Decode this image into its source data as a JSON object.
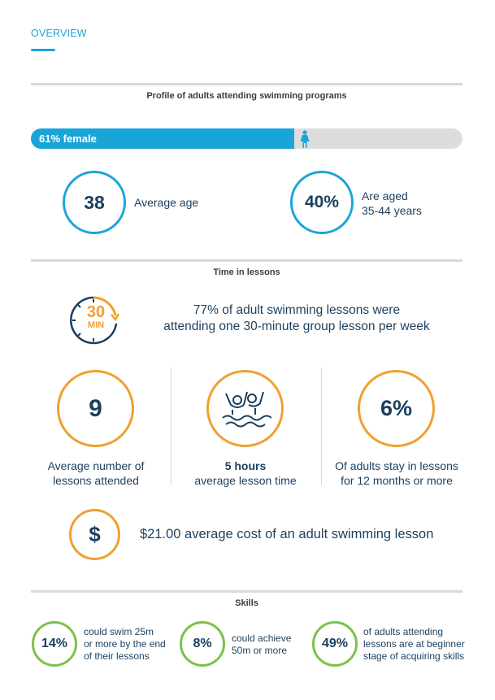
{
  "header": {
    "overview": "OVERVIEW"
  },
  "profile": {
    "title": "Profile of adults attending swimming programs",
    "female_label": "61% female",
    "female_fraction": 0.61,
    "avg_age_value": "38",
    "avg_age_label": "Average age",
    "aged_value": "40%",
    "aged_line1": "Are aged",
    "aged_line2": "35-44 years"
  },
  "time": {
    "title": "Time in lessons",
    "clock_number": "30",
    "clock_unit": "MIN",
    "lesson_text_line1": "77% of adult swimming lessons were",
    "lesson_text_line2": "attending one 30-minute group lesson per week",
    "stat1_value": "9",
    "stat1_line1": "Average number of",
    "stat1_line2": "lessons attended",
    "stat2_bold": "5 hours",
    "stat2_line2": "average lesson time",
    "stat3_value": "6%",
    "stat3_line1": "Of adults stay in lessons",
    "stat3_line2": "for 12 months or more",
    "cost_symbol": "$",
    "cost_text": "$21.00 average cost of an adult swimming lesson"
  },
  "skills": {
    "title": "Skills",
    "s1_value": "14%",
    "s1_line1": "could swim 25m",
    "s1_line2": "or more by the end",
    "s1_line3": "of their lessons",
    "s2_value": "8%",
    "s2_line1": "could achieve",
    "s2_line2": "50m or more",
    "s3_value": "49%",
    "s3_line1": "of adults attending",
    "s3_line2": "lessons are at beginner",
    "s3_line3": "stage of acquiring skills"
  },
  "colors": {
    "blue": "#1aa5d8",
    "orange": "#f0a030",
    "green": "#7cc24a",
    "navy": "#1b3f5e"
  },
  "icons": [
    "female-icon",
    "clock-icon",
    "swimmers-icon",
    "dollar-icon"
  ]
}
